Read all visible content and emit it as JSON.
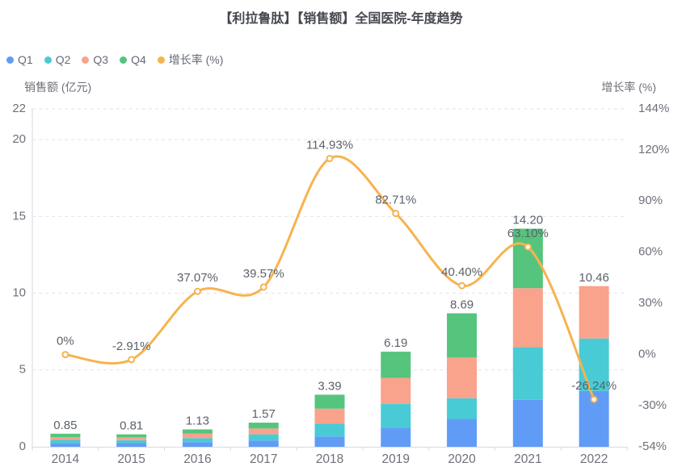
{
  "title": "【利拉鲁肽】【销售额】全国医院-年度趋势",
  "legend": [
    {
      "label": "Q1",
      "color": "#609cf6"
    },
    {
      "label": "Q2",
      "color": "#49cbd5"
    },
    {
      "label": "Q3",
      "color": "#f9a28c"
    },
    {
      "label": "Q4",
      "color": "#55c47d"
    },
    {
      "label": "增长率 (%)",
      "color": "#f7b34f"
    }
  ],
  "chart_data": {
    "type": "bar",
    "subtype": "stacked-bar-with-line",
    "categories": [
      "2014",
      "2015",
      "2016",
      "2017",
      "2018",
      "2019",
      "2020",
      "2021",
      "2022"
    ],
    "series": [
      {
        "name": "Q1",
        "type": "bar",
        "color": "#609cf6",
        "values": [
          0.25,
          0.24,
          0.3,
          0.41,
          0.67,
          1.24,
          1.81,
          3.06,
          3.63
        ]
      },
      {
        "name": "Q2",
        "type": "bar",
        "color": "#49cbd5",
        "values": [
          0.2,
          0.19,
          0.26,
          0.4,
          0.83,
          1.55,
          1.35,
          3.42,
          3.42
        ]
      },
      {
        "name": "Q3",
        "type": "bar",
        "color": "#f9a28c",
        "values": [
          0.17,
          0.18,
          0.3,
          0.38,
          0.98,
          1.7,
          2.65,
          3.85,
          3.41
        ]
      },
      {
        "name": "Q4",
        "type": "bar",
        "color": "#55c47d",
        "values": [
          0.23,
          0.2,
          0.27,
          0.38,
          0.91,
          1.7,
          2.88,
          3.87,
          0
        ]
      },
      {
        "name": "增长率 (%)",
        "type": "line",
        "color": "#f7b34f",
        "values": [
          0,
          -2.91,
          37.07,
          39.57,
          114.93,
          82.71,
          40.4,
          63.1,
          -26.24
        ]
      }
    ],
    "bar_total_labels": [
      "0.85",
      "0.81",
      "1.13",
      "1.57",
      "3.39",
      "6.19",
      "8.69",
      "14.20",
      "10.46"
    ],
    "line_point_labels": [
      "0%",
      "-2.91%",
      "37.07%",
      "39.57%",
      "114.93%",
      "82.71%",
      "40.40%",
      "63.10%",
      "-26.24%"
    ],
    "left_axis": {
      "name": "销售额 (亿元)",
      "min": 0,
      "max": 22,
      "ticks": [
        0,
        5,
        10,
        15,
        20,
        22
      ],
      "tick_labels": [
        "0",
        "5",
        "10",
        "15",
        "20",
        "22"
      ]
    },
    "right_axis": {
      "name": "增长率 (%)",
      "min": -54,
      "max": 144,
      "ticks": [
        -54,
        -30,
        0,
        30,
        60,
        90,
        120,
        144
      ],
      "tick_labels": [
        "-54%",
        "-30%",
        "0%",
        "30%",
        "60%",
        "90%",
        "120%",
        "144%"
      ]
    },
    "grid": {
      "dashed": true,
      "color": "#dde4f1"
    },
    "legend_position": "top-left"
  },
  "colors": {
    "axis_line": "#d7dae0",
    "axis_text": "#6e7079",
    "value_label_text": "#5c626b",
    "title_text": "#45484f",
    "marker_fill": "#ffffff"
  }
}
